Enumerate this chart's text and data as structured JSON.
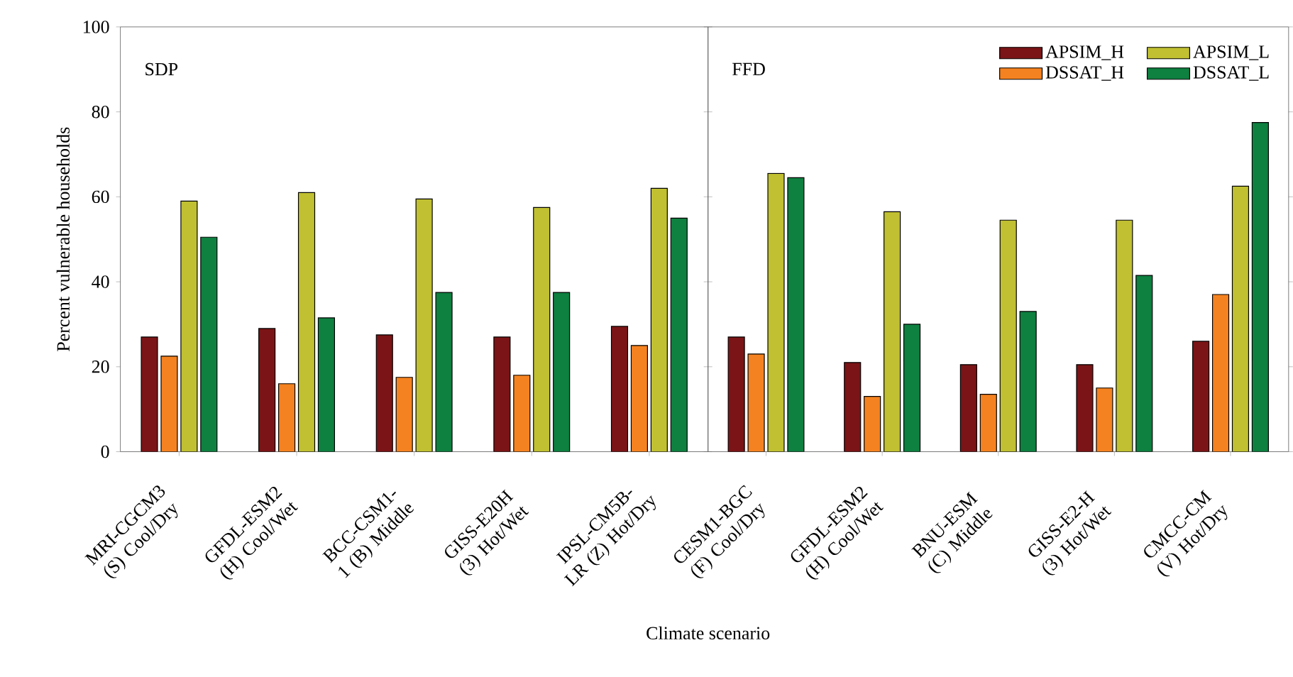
{
  "chart_data": [
    {
      "type": "bar",
      "title": "SDP",
      "ylabel": "Percent vulnerable households",
      "xlabel": "Climate scenario",
      "categories": [
        "MRI-CGCM3 (S) Cool/Dry",
        "GFDL-ESM2 (H) Cool/Wet",
        "BCC-CSM1-1 (B) Middle",
        "GISS-E20H (3) Hot/Wet",
        "IPSL-CM5B-LR (Z) Hot/Dry"
      ],
      "series": [
        {
          "color": "#7b1416",
          "values": [
            27,
            29,
            27.5,
            27,
            29.5
          ]
        },
        {
          "color": "#f58220",
          "values": [
            22.5,
            16,
            17.5,
            18,
            25
          ]
        },
        {
          "color": "#c0c032",
          "values": [
            59,
            61,
            59.5,
            57.5,
            62
          ]
        },
        {
          "color": "#0e8040",
          "values": [
            50.5,
            31.5,
            37.5,
            37.5,
            55
          ]
        }
      ],
      "ylim": [
        0,
        100
      ],
      "yticks": [
        0,
        20,
        40,
        60,
        80,
        100
      ],
      "legend": false
    },
    {
      "type": "bar",
      "title": "FFD",
      "categories": [
        "CESM1-BGC (F) Cool/Dry",
        "GFDL-ESM2 (H) Cool/Wet",
        "BNU-ESM (C) Middle",
        "GISS-E2-H (3) Hot/Wet",
        "CMCC-CM (V) Hot/Dry"
      ],
      "series": [
        {
          "name": "APSIM_H",
          "color": "#7b1416",
          "values": [
            27,
            21,
            20.5,
            20.5,
            26
          ]
        },
        {
          "name": "DSSAT_H",
          "color": "#f58220",
          "values": [
            23,
            13,
            13.5,
            15,
            37
          ]
        },
        {
          "name": "APSIM_L",
          "color": "#c0c032",
          "values": [
            65.5,
            56.5,
            54.5,
            54.5,
            62.5
          ]
        },
        {
          "name": "DSSAT_L",
          "color": "#0e8040",
          "values": [
            64.5,
            30,
            33,
            41.5,
            77.5
          ]
        }
      ],
      "ylim": [
        0,
        100
      ],
      "yticks": [
        0,
        20,
        40,
        60,
        80,
        100
      ],
      "tick_labels": "x",
      "legend": "top right"
    }
  ]
}
